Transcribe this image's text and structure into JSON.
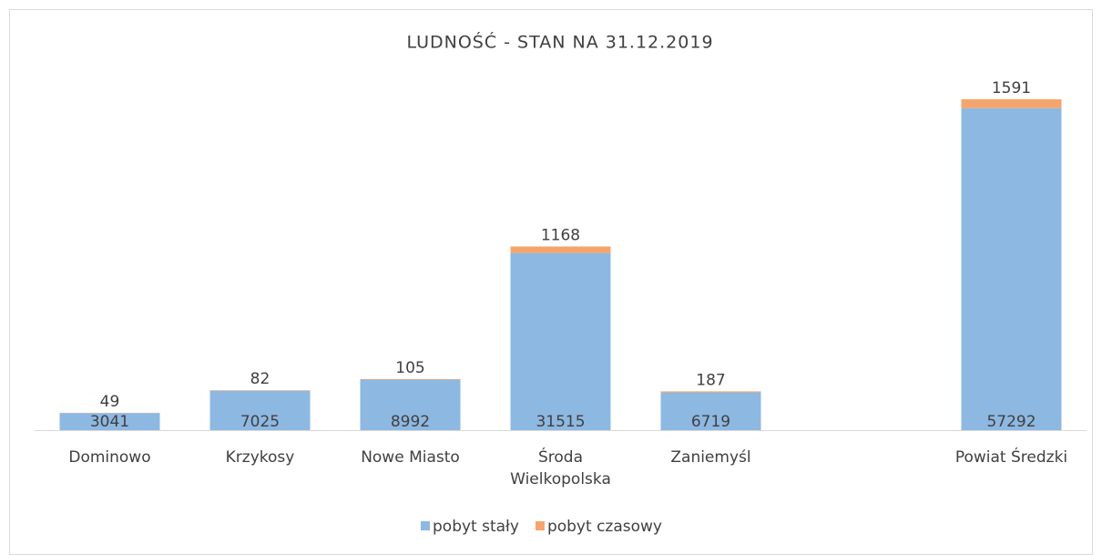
{
  "chart_data": {
    "type": "stacked_bar",
    "title": "LUDNOŚĆ - STAN NA 31.12.2019",
    "categories": [
      "Dominowo",
      "Krzykosy",
      "Nowe Miasto",
      "Środa Wielkopolska",
      "Zaniemyśl",
      null,
      "Powiat Średzki"
    ],
    "series": [
      {
        "name": "pobyt stały",
        "color": "#8db8e2",
        "values": [
          3041,
          7025,
          8992,
          31515,
          6719,
          null,
          57292
        ]
      },
      {
        "name": "pobyt czasowy",
        "color": "#f4a56e",
        "values": [
          49,
          82,
          105,
          1168,
          187,
          null,
          1591
        ]
      }
    ],
    "ylim": [
      0,
      60000
    ],
    "legend": "bottom"
  }
}
